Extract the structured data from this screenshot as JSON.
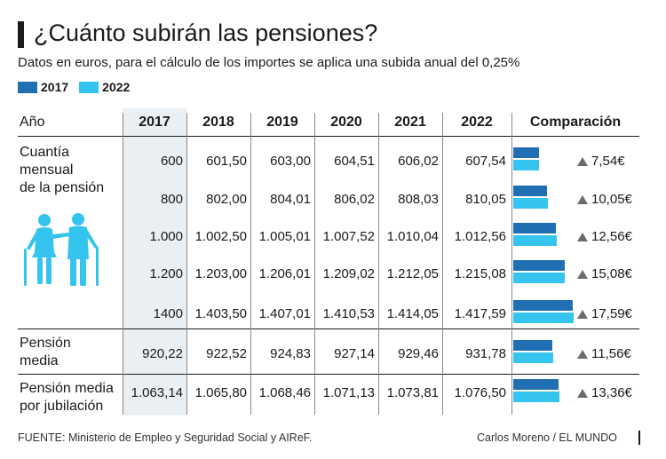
{
  "title": "¿Cuánto subirán las pensiones?",
  "subtitle": "Datos en euros, para el cálculo de los importes se aplica una subida anual del 0,25%",
  "legend": [
    {
      "label": "2017",
      "color": "#1f6fb2"
    },
    {
      "label": "2022",
      "color": "#35c4ee"
    }
  ],
  "table": {
    "row_header": "Año",
    "years": [
      "2017",
      "2018",
      "2019",
      "2020",
      "2021",
      "2022"
    ],
    "comparison_header": "Comparación",
    "groups": [
      {
        "label": "Cuantía\nmensual\nde la pensión",
        "rows": [
          {
            "values": [
              "600",
              "601,50",
              "603,00",
              "604,51",
              "606,02",
              "607,54"
            ],
            "delta": "7,54€",
            "bar_2017": 600,
            "bar_2022": 607.54
          },
          {
            "values": [
              "800",
              "802,00",
              "804,01",
              "806,02",
              "808,03",
              "810,05"
            ],
            "delta": "10,05€",
            "bar_2017": 800,
            "bar_2022": 810.05
          },
          {
            "values": [
              "1.000",
              "1.002,50",
              "1.005,01",
              "1.007,52",
              "1.010,04",
              "1.012,56"
            ],
            "delta": "12,56€",
            "bar_2017": 1000,
            "bar_2022": 1012.56
          },
          {
            "values": [
              "1.200",
              "1.203,00",
              "1.206,01",
              "1.209,02",
              "1.212,05",
              "1.215,08"
            ],
            "delta": "15,08€",
            "bar_2017": 1200,
            "bar_2022": 1215.08
          },
          {
            "values": [
              "1400",
              "1.403,50",
              "1.407,01",
              "1.410,53",
              "1.414,05",
              "1.417,59"
            ],
            "delta": "17,59€",
            "bar_2017": 1400,
            "bar_2022": 1417.59
          }
        ]
      },
      {
        "label": "Pensión\nmedia",
        "rows": [
          {
            "values": [
              "920,22",
              "922,52",
              "924,83",
              "927,14",
              "929,46",
              "931,78"
            ],
            "delta": "11,56€",
            "bar_2017": 920.22,
            "bar_2022": 931.78
          }
        ]
      },
      {
        "label": "Pensión media\npor jubilación",
        "rows": [
          {
            "values": [
              "1.063,14",
              "1.065,80",
              "1.068,46",
              "1.071,13",
              "1.073,81",
              "1.076,50"
            ],
            "delta": "13,36€",
            "bar_2017": 1063.14,
            "bar_2022": 1076.5
          }
        ]
      }
    ]
  },
  "icon": "elderly-couple-icon",
  "footer": {
    "source": "FUENTE: Ministerio de Empleo y Seguridad Social y AIReF.",
    "credit": "Carlos Moreno / EL MUNDO"
  }
}
